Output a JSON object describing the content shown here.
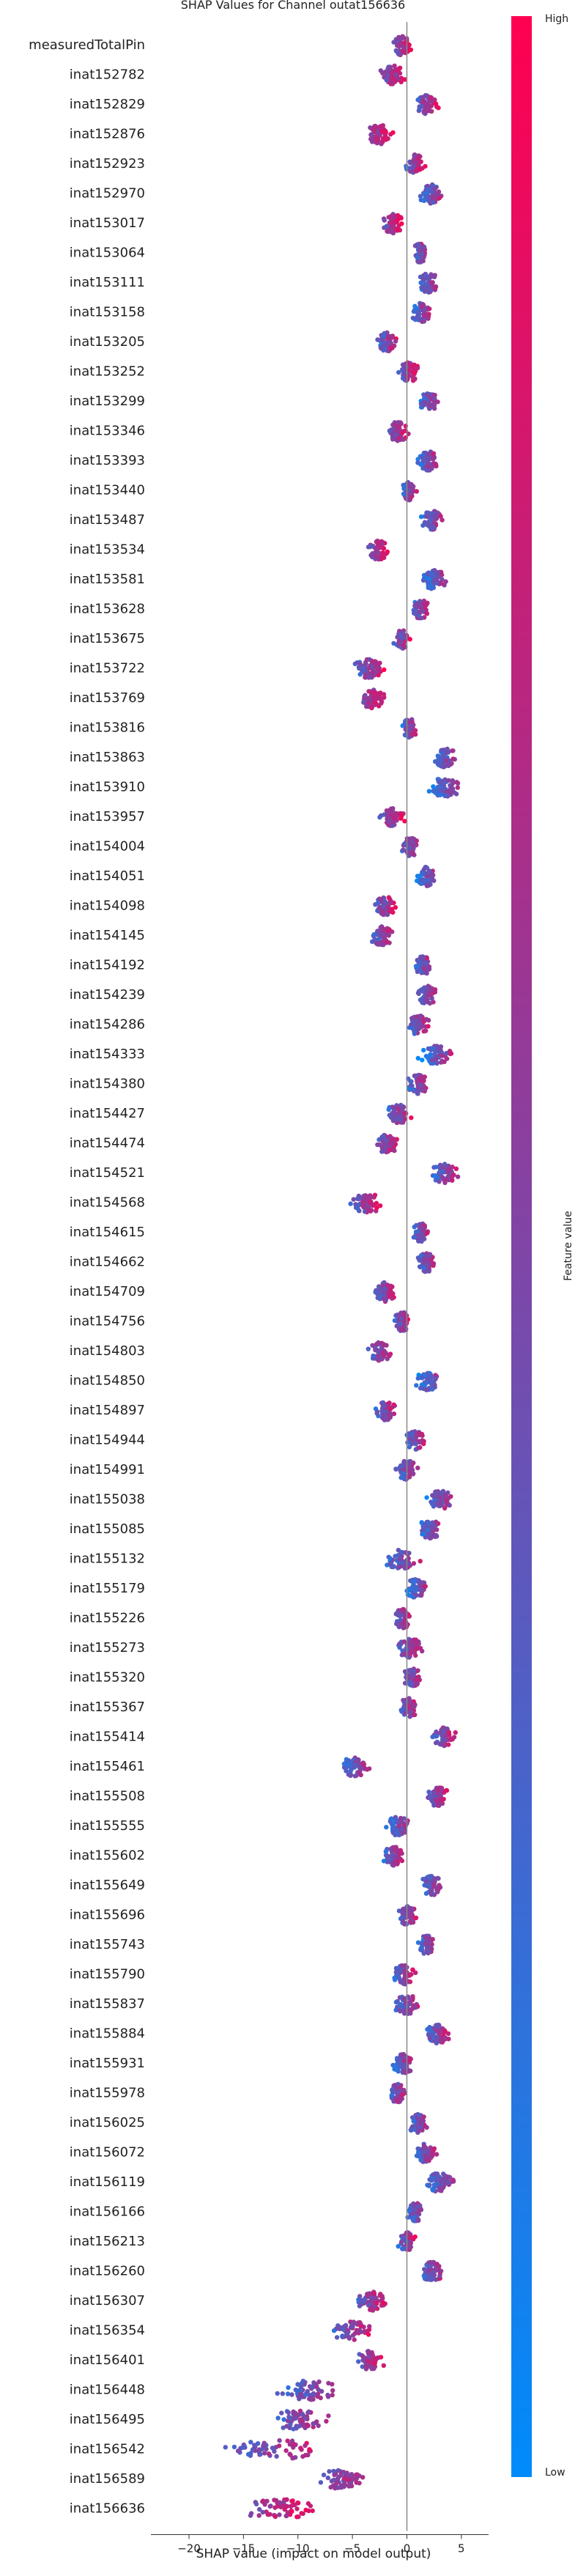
{
  "chart_data": {
    "type": "scatter",
    "subtype": "shap_beeswarm",
    "title": "SHAP Values for Channel outat156636",
    "xlabel": "SHAP value (impact on model output)",
    "xlim": [
      -23.5,
      7.5
    ],
    "xticks": [
      -20,
      -15,
      -10,
      -5,
      0,
      5
    ],
    "grid": false,
    "colorbar": {
      "label": "Feature value",
      "high_label": "High",
      "low_label": "Low",
      "high_color": "#ff0051",
      "low_color": "#008bfb"
    },
    "features": [
      {
        "name": "measuredTotalPin",
        "min": -3.0,
        "max": 0.9,
        "center": -0.5,
        "trend": 1
      },
      {
        "name": "inat152782",
        "min": -4.0,
        "max": 0.3,
        "center": -1.3,
        "trend": 1
      },
      {
        "name": "inat152829",
        "min": -0.5,
        "max": 3.5,
        "center": 1.8,
        "trend": 1
      },
      {
        "name": "inat152876",
        "min": -5.5,
        "max": -1.0,
        "center": -2.5,
        "trend": 1
      },
      {
        "name": "inat152923",
        "min": -1.0,
        "max": 2.0,
        "center": 0.8,
        "trend": 1
      },
      {
        "name": "inat152970",
        "min": 0.5,
        "max": 4.5,
        "center": 2.2,
        "trend": 1
      },
      {
        "name": "inat153017",
        "min": -3.5,
        "max": 0.0,
        "center": -1.3,
        "trend": 1
      },
      {
        "name": "inat153064",
        "min": 0.0,
        "max": 2.5,
        "center": 1.2,
        "trend": 1
      },
      {
        "name": "inat153111",
        "min": 0.3,
        "max": 4.0,
        "center": 2.0,
        "trend": 1
      },
      {
        "name": "inat153158",
        "min": 0.0,
        "max": 3.0,
        "center": 1.3,
        "trend": 1
      },
      {
        "name": "inat153205",
        "min": -3.5,
        "max": -0.3,
        "center": -1.8,
        "trend": 1
      },
      {
        "name": "inat153252",
        "min": -2.0,
        "max": 1.5,
        "center": 0.2,
        "trend": 1
      },
      {
        "name": "inat153299",
        "min": 0.5,
        "max": 3.8,
        "center": 2.0,
        "trend": 1
      },
      {
        "name": "inat153346",
        "min": -3.0,
        "max": 0.5,
        "center": -0.8,
        "trend": 1
      },
      {
        "name": "inat153393",
        "min": 0.5,
        "max": 4.0,
        "center": 2.0,
        "trend": 1
      },
      {
        "name": "inat153440",
        "min": -1.0,
        "max": 1.3,
        "center": 0.2,
        "trend": 1
      },
      {
        "name": "inat153487",
        "min": 0.8,
        "max": 4.0,
        "center": 2.3,
        "trend": 1
      },
      {
        "name": "inat153534",
        "min": -5.0,
        "max": -1.3,
        "center": -2.6,
        "trend": 1
      },
      {
        "name": "inat153581",
        "min": 0.8,
        "max": 4.8,
        "center": 2.5,
        "trend": 1
      },
      {
        "name": "inat153628",
        "min": -0.3,
        "max": 2.8,
        "center": 1.3,
        "trend": 1
      },
      {
        "name": "inat153675",
        "min": -1.8,
        "max": 0.8,
        "center": -0.5,
        "trend": 1
      },
      {
        "name": "inat153722",
        "min": -6.0,
        "max": -1.5,
        "center": -3.5,
        "trend": 1
      },
      {
        "name": "inat153769",
        "min": -6.0,
        "max": -1.5,
        "center": -3.2,
        "trend": 1
      },
      {
        "name": "inat153816",
        "min": -1.0,
        "max": 1.5,
        "center": 0.3,
        "trend": 1
      },
      {
        "name": "inat153863",
        "min": 2.0,
        "max": 6.0,
        "center": 3.5,
        "trend": 1
      },
      {
        "name": "inat153910",
        "min": 1.5,
        "max": 6.5,
        "center": 3.5,
        "trend": 1
      },
      {
        "name": "inat153957",
        "min": -4.0,
        "max": 0.3,
        "center": -1.3,
        "trend": 1
      },
      {
        "name": "inat154004",
        "min": -1.3,
        "max": 1.8,
        "center": 0.3,
        "trend": 1
      },
      {
        "name": "inat154051",
        "min": 0.5,
        "max": 3.8,
        "center": 1.8,
        "trend": 1
      },
      {
        "name": "inat154098",
        "min": -4.0,
        "max": -0.5,
        "center": -2.0,
        "trend": 1
      },
      {
        "name": "inat154145",
        "min": -4.5,
        "max": -0.5,
        "center": -2.3,
        "trend": 1
      },
      {
        "name": "inat154192",
        "min": 0.3,
        "max": 3.0,
        "center": 1.5,
        "trend": 1
      },
      {
        "name": "inat154239",
        "min": 0.3,
        "max": 3.5,
        "center": 1.8,
        "trend": 1
      },
      {
        "name": "inat154286",
        "min": -0.8,
        "max": 2.8,
        "center": 1.0,
        "trend": 1
      },
      {
        "name": "inat154333",
        "min": 0.8,
        "max": 5.8,
        "center": 2.7,
        "trend": 1
      },
      {
        "name": "inat154380",
        "min": -0.8,
        "max": 3.0,
        "center": 1.0,
        "trend": 1
      },
      {
        "name": "inat154427",
        "min": -2.8,
        "max": 1.2,
        "center": -0.8,
        "trend": 1
      },
      {
        "name": "inat154474",
        "min": -4.0,
        "max": -0.3,
        "center": -1.8,
        "trend": 1
      },
      {
        "name": "inat154521",
        "min": 1.5,
        "max": 5.8,
        "center": 3.4,
        "trend": 1
      },
      {
        "name": "inat154568",
        "min": -6.8,
        "max": -1.5,
        "center": -3.6,
        "trend": 1
      },
      {
        "name": "inat154615",
        "min": 0.0,
        "max": 2.8,
        "center": 1.3,
        "trend": 1
      },
      {
        "name": "inat154662",
        "min": 0.3,
        "max": 3.5,
        "center": 1.8,
        "trend": 1
      },
      {
        "name": "inat154709",
        "min": -4.0,
        "max": -0.3,
        "center": -2.0,
        "trend": 1
      },
      {
        "name": "inat154756",
        "min": -1.8,
        "max": 0.8,
        "center": -0.4,
        "trend": 1
      },
      {
        "name": "inat154803",
        "min": -5.0,
        "max": -0.3,
        "center": -2.3,
        "trend": 1
      },
      {
        "name": "inat154850",
        "min": 0.3,
        "max": 5.0,
        "center": 2.0,
        "trend": 1
      },
      {
        "name": "inat154897",
        "min": -3.8,
        "max": -0.3,
        "center": -2.0,
        "trend": 1
      },
      {
        "name": "inat154944",
        "min": -0.8,
        "max": 2.5,
        "center": 0.8,
        "trend": 1
      },
      {
        "name": "inat154991",
        "min": -1.8,
        "max": 2.0,
        "center": 0.0,
        "trend": 1
      },
      {
        "name": "inat155038",
        "min": 1.0,
        "max": 5.5,
        "center": 3.0,
        "trend": 1
      },
      {
        "name": "inat155085",
        "min": 0.5,
        "max": 4.5,
        "center": 2.0,
        "trend": 1
      },
      {
        "name": "inat155132",
        "min": -3.0,
        "max": 2.5,
        "center": -0.5,
        "trend": 1
      },
      {
        "name": "inat155179",
        "min": -0.5,
        "max": 3.0,
        "center": 0.8,
        "trend": 1
      },
      {
        "name": "inat155226",
        "min": -2.0,
        "max": 1.0,
        "center": -0.4,
        "trend": 1
      },
      {
        "name": "inat155273",
        "min": -2.5,
        "max": 2.5,
        "center": 0.3,
        "trend": 1
      },
      {
        "name": "inat155320",
        "min": -1.0,
        "max": 2.0,
        "center": 0.5,
        "trend": 1
      },
      {
        "name": "inat155367",
        "min": -1.5,
        "max": 1.5,
        "center": 0.2,
        "trend": 1
      },
      {
        "name": "inat155414",
        "min": 1.5,
        "max": 5.0,
        "center": 3.4,
        "trend": 1
      },
      {
        "name": "inat155461",
        "min": -7.0,
        "max": -2.0,
        "center": -4.8,
        "trend": 1
      },
      {
        "name": "inat155508",
        "min": 0.8,
        "max": 4.5,
        "center": 2.8,
        "trend": 1
      },
      {
        "name": "inat155555",
        "min": -2.5,
        "max": 1.5,
        "center": -0.8,
        "trend": 1
      },
      {
        "name": "inat155602",
        "min": -3.0,
        "max": 0.5,
        "center": -1.2,
        "trend": 1
      },
      {
        "name": "inat155649",
        "min": 0.5,
        "max": 4.3,
        "center": 2.3,
        "trend": 1
      },
      {
        "name": "inat155696",
        "min": -1.5,
        "max": 1.5,
        "center": 0.0,
        "trend": 1
      },
      {
        "name": "inat155743",
        "min": 0.5,
        "max": 3.5,
        "center": 1.8,
        "trend": 1
      },
      {
        "name": "inat155790",
        "min": -2.0,
        "max": 1.3,
        "center": -0.3,
        "trend": 1
      },
      {
        "name": "inat155837",
        "min": -2.0,
        "max": 2.0,
        "center": 0.0,
        "trend": 1
      },
      {
        "name": "inat155884",
        "min": 1.0,
        "max": 4.5,
        "center": 2.8,
        "trend": 1
      },
      {
        "name": "inat155931",
        "min": -2.0,
        "max": 1.5,
        "center": -0.3,
        "trend": 1
      },
      {
        "name": "inat155978",
        "min": -2.5,
        "max": 0.8,
        "center": -0.8,
        "trend": 1
      },
      {
        "name": "inat156025",
        "min": -0.5,
        "max": 2.8,
        "center": 1.0,
        "trend": 1
      },
      {
        "name": "inat156072",
        "min": 0.0,
        "max": 3.5,
        "center": 1.8,
        "trend": 1
      },
      {
        "name": "inat156119",
        "min": 1.0,
        "max": 6.0,
        "center": 3.0,
        "trend": 1
      },
      {
        "name": "inat156166",
        "min": -0.5,
        "max": 2.5,
        "center": 0.8,
        "trend": 1
      },
      {
        "name": "inat156213",
        "min": -1.5,
        "max": 1.3,
        "center": 0.0,
        "trend": 1
      },
      {
        "name": "inat156260",
        "min": 0.3,
        "max": 4.5,
        "center": 2.3,
        "trend": 1
      },
      {
        "name": "inat156307",
        "min": -6.5,
        "max": -1.0,
        "center": -3.0,
        "trend": 1
      },
      {
        "name": "inat156354",
        "min": -9.0,
        "max": -2.0,
        "center": -5.0,
        "trend": 1
      },
      {
        "name": "inat156401",
        "min": -6.5,
        "max": -1.5,
        "center": -3.5,
        "trend": 1
      },
      {
        "name": "inat156448",
        "min": -13.5,
        "max": -3.5,
        "center": -9.0,
        "trend": 1
      },
      {
        "name": "inat156495",
        "min": -15.0,
        "max": -5.0,
        "center": -10.0,
        "trend": 1
      },
      {
        "name": "inat156542",
        "min": -20.5,
        "max": -5.0,
        "center": -12.0,
        "trend": 1
      },
      {
        "name": "inat156589",
        "min": -10.5,
        "max": -2.5,
        "center": -6.0,
        "trend": 1
      },
      {
        "name": "inat156636",
        "min": -21.5,
        "max": -7.5,
        "center": -11.5,
        "trend": 1
      }
    ]
  }
}
